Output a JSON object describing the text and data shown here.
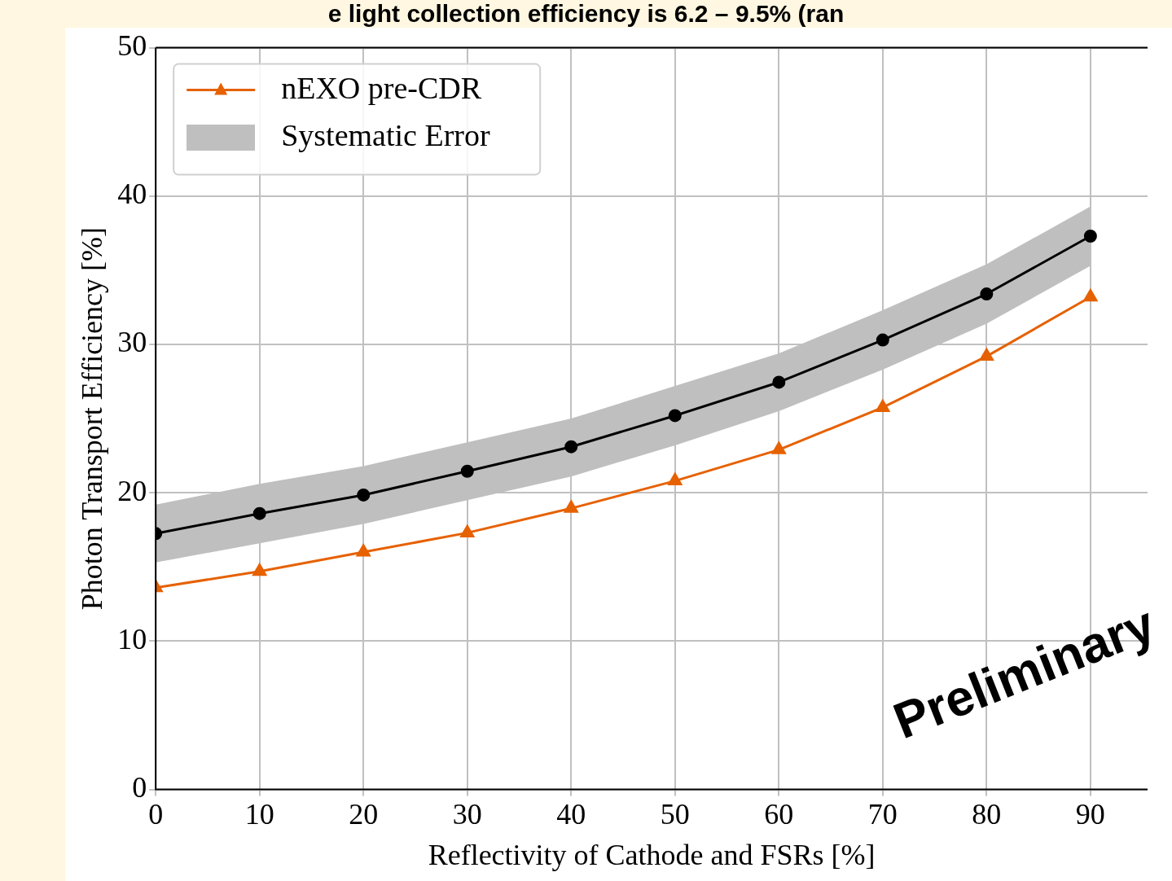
{
  "chart_data": {
    "type": "line",
    "title": "e light collection efficiency is 6.2 – 9.5% (ran",
    "xlabel": "Reflectivity of Cathode and FSRs [%]",
    "ylabel": "Photon Transport Efficiency [%]",
    "x": [
      0,
      10,
      20,
      30,
      40,
      50,
      60,
      70,
      80,
      90
    ],
    "series": [
      {
        "name": "nEXO pre-CDR",
        "color": "#e66100",
        "marker": "triangle",
        "values": [
          13.6,
          14.7,
          16.0,
          17.3,
          18.95,
          20.8,
          22.9,
          25.75,
          29.2,
          33.2
        ]
      },
      {
        "color": "#000000",
        "marker": "circle",
        "values": [
          17.25,
          18.6,
          19.85,
          21.45,
          23.1,
          25.2,
          27.45,
          30.3,
          33.4,
          37.3
        ],
        "lower": [
          15.3,
          16.6,
          17.9,
          19.5,
          21.1,
          23.2,
          25.5,
          28.3,
          31.4,
          35.3
        ],
        "upper": [
          19.2,
          20.6,
          21.8,
          23.4,
          25.0,
          27.2,
          29.4,
          32.3,
          35.4,
          39.3
        ]
      }
    ],
    "xlim": [
      0,
      95.5
    ],
    "xticks": [
      0,
      10,
      20,
      30,
      40,
      50,
      60,
      70,
      80,
      90
    ],
    "ylim": [
      0,
      50
    ],
    "yticks": [
      0,
      10,
      20,
      30,
      40,
      50
    ],
    "grid": true,
    "legend": "top left",
    "line_style": "solid",
    "annotations": [
      "Systematic Error",
      "Preliminary"
    ]
  }
}
